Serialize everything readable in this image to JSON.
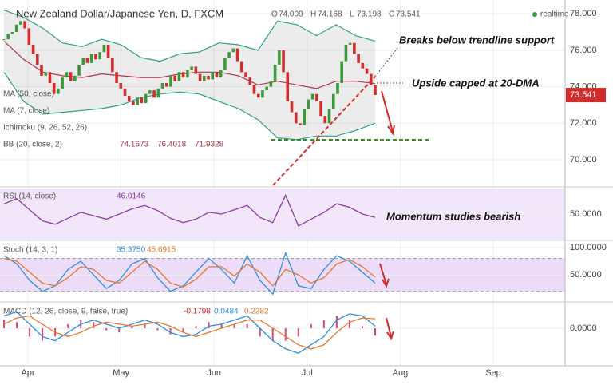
{
  "header": {
    "title": "New Zealand Dollar/Japanese Yen, D, FXCM",
    "ohlc": [
      {
        "label": "O",
        "value": 74.009
      },
      {
        "label": "H",
        "value": 74.168
      },
      {
        "label": "L",
        "value": 73.198
      },
      {
        "label": "C",
        "value": 73.541
      }
    ],
    "status": "realtime"
  },
  "x_axis": {
    "categories": [
      "Apr",
      "May",
      "Jun",
      "Jul",
      "Aug",
      "Sep"
    ]
  },
  "chart_data": [
    {
      "type": "candlestick",
      "up_color": "#3a9a3a",
      "down_color": "#d12d2d",
      "indicators": [
        "MA (50, close)",
        "MA (7, close)",
        "Ichimoku (9, 26, 52, 26)",
        "BB (20, close, 2)"
      ],
      "bb_values": [
        74.1673,
        76.4018,
        71.9328
      ],
      "last_price": 73.541,
      "close": [
        76.6,
        76.9,
        77.0,
        77.4,
        77.6,
        77.2,
        76.3,
        75.8,
        75.2,
        74.6,
        74.8,
        74.2,
        73.6,
        73.9,
        74.5,
        74.8,
        74.3,
        74.6,
        75.2,
        75.6,
        75.3,
        75.8,
        75.5,
        75.9,
        76.3,
        75.6,
        74.8,
        74.2,
        73.9,
        73.5,
        73.2,
        73.0,
        73.4,
        73.1,
        73.6,
        73.8,
        73.4,
        73.9,
        74.2,
        74.0,
        74.6,
        74.3,
        74.8,
        74.5,
        74.9,
        75.1,
        74.7,
        74.3,
        74.6,
        74.4,
        74.8,
        74.5,
        74.9,
        75.6,
        75.9,
        76.1,
        75.4,
        74.8,
        74.5,
        74.1,
        73.6,
        73.4,
        73.8,
        74.0,
        74.3,
        75.2,
        76.0,
        74.8,
        73.2,
        72.6,
        72.0,
        71.9,
        72.8,
        73.3,
        73.6,
        73.2,
        72.4,
        72.0,
        72.8,
        73.6,
        74.2,
        75.4,
        76.3,
        76.4,
        75.8,
        75.3,
        75.0,
        74.7,
        74.1,
        73.541
      ],
      "series": [
        {
          "name": "BB upper",
          "color": "#2e9c8f",
          "values": [
            78.2,
            77.8,
            77.2,
            76.4,
            76.2,
            76.6,
            76.3,
            75.6,
            75.4,
            75.8,
            75.9,
            76.4,
            76.3,
            76.0,
            77.6,
            77.4,
            76.8,
            77.4,
            76.8,
            76.5
          ]
        },
        {
          "name": "BB lower",
          "color": "#2e9c8f",
          "values": [
            74.8,
            73.2,
            72.5,
            72.6,
            72.7,
            72.8,
            73.0,
            73.4,
            73.6,
            73.7,
            73.6,
            73.2,
            72.8,
            72.2,
            71.2,
            71.1,
            71.3,
            71.3,
            71.6,
            72.0
          ]
        },
        {
          "name": "BB basis",
          "color": "#b0364a",
          "values": [
            76.5,
            75.5,
            74.8,
            74.6,
            74.5,
            74.7,
            74.6,
            74.5,
            74.5,
            74.7,
            74.8,
            74.8,
            74.6,
            74.1,
            74.3,
            74.1,
            73.9,
            74.3,
            74.3,
            74.17
          ]
        }
      ],
      "annotations": [
        "Breaks below trendline support",
        "Upside capped at 20-DMA"
      ],
      "ylim": [
        68.6,
        78.4
      ],
      "yticks": [
        {
          "value": 78,
          "label": "78.000"
        },
        {
          "value": 76,
          "label": "76.000"
        },
        {
          "value": 74,
          "label": "74.000"
        },
        {
          "value": 72,
          "label": "72.000"
        },
        {
          "value": 70,
          "label": "70.000"
        }
      ]
    },
    {
      "type": "line",
      "label": "RSI (14, close)",
      "readout": [
        46.0146
      ],
      "series": [
        {
          "name": "RSI",
          "color": "#8e3aa8",
          "values": [
            62,
            68,
            55,
            42,
            38,
            45,
            52,
            48,
            44,
            50,
            56,
            60,
            54,
            45,
            40,
            44,
            52,
            50,
            55,
            60,
            46,
            40,
            72,
            36,
            44,
            52,
            62,
            58,
            50,
            46
          ]
        }
      ],
      "annotations": [
        "Momentum studies bearish"
      ],
      "ylim": [
        20,
        80
      ],
      "yticks": [
        {
          "value": 50,
          "label": "50.0000"
        }
      ]
    },
    {
      "type": "line",
      "label": "Stoch (14, 3, 1)",
      "readout": [
        {
          "value": 35.375,
          "label": "35.3750"
        },
        {
          "value": 45.6915,
          "label": "45.6915"
        }
      ],
      "series": [
        {
          "name": "%K",
          "color": "#2f8fe0",
          "values": [
            85,
            70,
            40,
            20,
            30,
            60,
            75,
            50,
            25,
            40,
            70,
            80,
            45,
            20,
            30,
            55,
            80,
            60,
            35,
            85,
            40,
            15,
            90,
            30,
            25,
            60,
            85,
            75,
            55,
            35
          ]
        },
        {
          "name": "%D",
          "color": "#e6772a",
          "values": [
            80,
            75,
            55,
            35,
            30,
            45,
            65,
            60,
            40,
            35,
            55,
            75,
            60,
            35,
            28,
            42,
            65,
            65,
            48,
            70,
            55,
            30,
            60,
            50,
            35,
            45,
            70,
            78,
            65,
            46
          ]
        }
      ],
      "bands": [
        80,
        20
      ],
      "ylim": [
        5,
        110
      ],
      "yticks": [
        {
          "value": 100,
          "label": "100.0000"
        },
        {
          "value": 50,
          "label": "50.0000"
        }
      ]
    },
    {
      "type": "line",
      "label": "MACD (12, 26, close, 9, false, true)",
      "readout": [
        -0.1798,
        0.0484,
        0.2282
      ],
      "histogram": {
        "name": "Histogram",
        "color": "#d9467a",
        "values": [
          0.2,
          0.15,
          -0.2,
          -0.3,
          -0.2,
          0.1,
          0.2,
          0.15,
          -0.05,
          -0.1,
          0.05,
          0.1,
          -0.05,
          -0.15,
          -0.1,
          0.05,
          0.15,
          0.1,
          0.1,
          0.1,
          -0.2,
          -0.3,
          -0.3,
          -0.2,
          0.1,
          0.2,
          0.3,
          0.2,
          0.05,
          -0.18
        ]
      },
      "series": [
        {
          "name": "MACD",
          "color": "#2f8fe0",
          "values": [
            0.3,
            0.4,
            0.1,
            -0.2,
            -0.3,
            -0.1,
            0.1,
            0.2,
            0.1,
            0,
            0.1,
            0.2,
            0.1,
            -0.1,
            -0.2,
            -0.15,
            0.05,
            0.1,
            0.2,
            0.3,
            0,
            -0.3,
            -0.5,
            -0.6,
            -0.4,
            -0.2,
            0.2,
            0.35,
            0.3,
            0.05
          ]
        },
        {
          "name": "Signal",
          "color": "#e6772a",
          "values": [
            0.1,
            0.25,
            0.3,
            0.1,
            -0.1,
            -0.2,
            -0.1,
            0.05,
            0.15,
            0.1,
            0.05,
            0.1,
            0.15,
            0.05,
            -0.1,
            -0.2,
            -0.1,
            0,
            0.1,
            0.2,
            0.2,
            0,
            -0.2,
            -0.4,
            -0.5,
            -0.4,
            -0.1,
            0.15,
            0.25,
            0.23
          ]
        }
      ],
      "ylim": [
        -0.85,
        0.6
      ],
      "yticks": [
        {
          "value": 0,
          "label": "0.0000"
        }
      ]
    }
  ]
}
